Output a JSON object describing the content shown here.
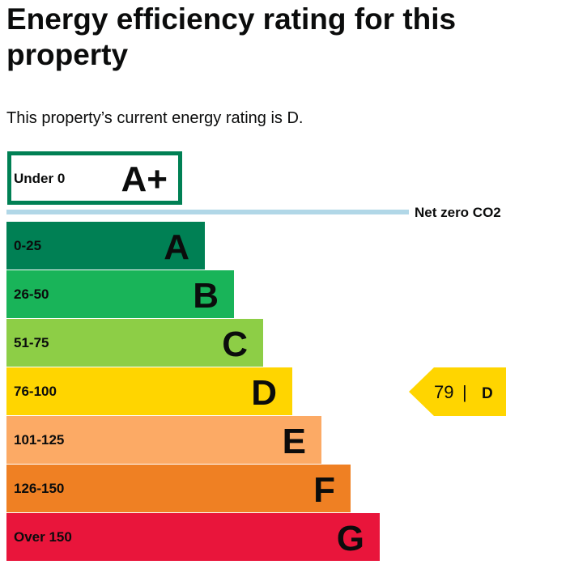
{
  "page": {
    "title": "Energy efficiency rating for this property",
    "intro": "This property’s current energy rating is D."
  },
  "chart_data": {
    "type": "bar",
    "title": "Energy efficiency rating for this property",
    "net_zero_label": "Net zero CO2",
    "bands": [
      {
        "letter": "A+",
        "range": "Under 0",
        "color": "#008054",
        "outlined": true
      },
      {
        "letter": "A",
        "range": "0-25",
        "color": "#008054"
      },
      {
        "letter": "B",
        "range": "26-50",
        "color": "#19b459"
      },
      {
        "letter": "C",
        "range": "51-75",
        "color": "#8dce46"
      },
      {
        "letter": "D",
        "range": "76-100",
        "color": "#ffd500"
      },
      {
        "letter": "E",
        "range": "101-125",
        "color": "#fcaa65"
      },
      {
        "letter": "F",
        "range": "126-150",
        "color": "#ef8023"
      },
      {
        "letter": "G",
        "range": "Over 150",
        "color": "#e9153b"
      }
    ],
    "current": {
      "score": "79",
      "separator": "|",
      "letter": "D",
      "band_index": 4,
      "color": "#ffd500"
    },
    "net_zero_line_color": "#b1d7e7"
  }
}
